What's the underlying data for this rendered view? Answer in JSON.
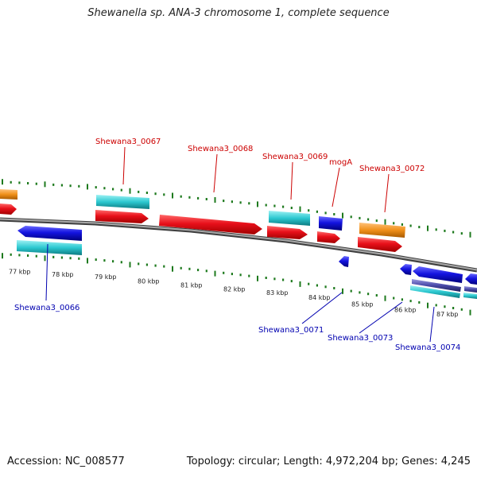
{
  "title": "Shewanella sp. ANA-3 chromosome 1, complete sequence",
  "accession": "Accession: NC_008577",
  "summary": "Topology: circular; Length: 4,972,204 bp; Genes: 4,245",
  "colors": {
    "backbone": "#7a7a7a",
    "ticks": "#1e7a1e",
    "cds_forward": "#e8101a",
    "cds_reverse": "#1414e0",
    "gene_feature": "#2cc8d0",
    "rna_feature": "#f0901a",
    "label_forward": "#cc0000",
    "label_reverse": "#0000b0"
  },
  "scale": {
    "labels": [
      "77 kbp",
      "78 kbp",
      "79 kbp",
      "80 kbp",
      "81 kbp",
      "82 kbp",
      "83 kbp",
      "84 kbp",
      "85 kbp",
      "86 kbp",
      "87 kbp"
    ]
  },
  "gene_labels_forward": [
    "Shewana3_0067",
    "Shewana3_0068",
    "Shewana3_0069",
    "mogA",
    "Shewana3_0072"
  ],
  "gene_labels_reverse": [
    "Shewana3_0066",
    "Shewana3_0071",
    "Shewana3_0073",
    "Shewana3_0074"
  ]
}
